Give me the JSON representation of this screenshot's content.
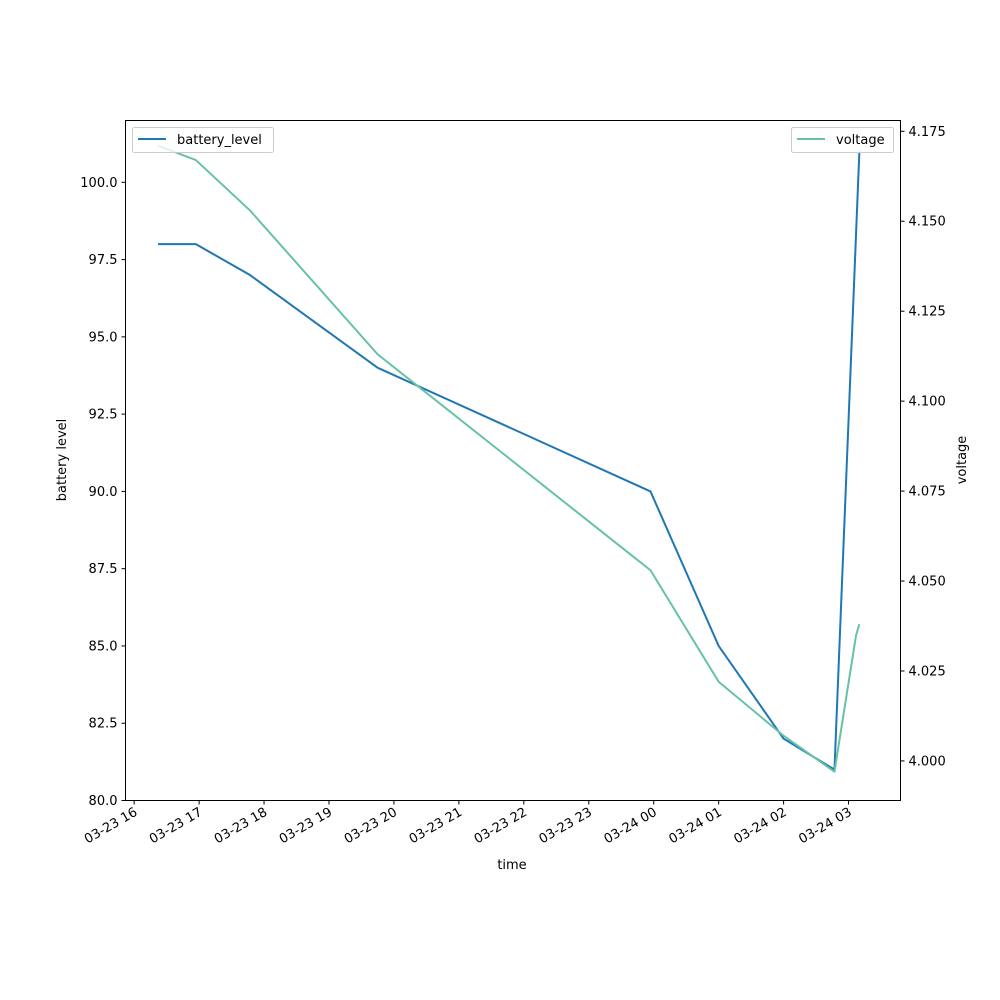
{
  "chart_data": {
    "type": "line",
    "xlabel": "time",
    "ylabel": "battery level",
    "y2label": "voltage",
    "xlim": [
      "03-23 15:52",
      "03-24 03:48"
    ],
    "ylim": [
      80.0,
      102.0
    ],
    "y2lim": [
      3.989,
      4.178
    ],
    "x_ticks": [
      "03-23 16",
      "03-23 17",
      "03-23 18",
      "03-23 19",
      "03-23 20",
      "03-23 21",
      "03-23 22",
      "03-23 23",
      "03-24 00",
      "03-24 01",
      "03-24 02",
      "03-24 03"
    ],
    "y_ticks": [
      "80.0",
      "82.5",
      "85.0",
      "87.5",
      "90.0",
      "92.5",
      "95.0",
      "97.5",
      "100.0"
    ],
    "y2_ticks": [
      "4.000",
      "4.025",
      "4.050",
      "4.075",
      "4.100",
      "4.125",
      "4.150",
      "4.175"
    ],
    "grid": false,
    "legend_placement": [
      "top-left",
      "top-right"
    ],
    "series": [
      {
        "name": "battery_level",
        "axis": "left",
        "color": "#1f77b4",
        "points": [
          {
            "x": "03-23 16:22",
            "y": 98
          },
          {
            "x": "03-23 16:57",
            "y": 98
          },
          {
            "x": "03-23 17:47",
            "y": 97
          },
          {
            "x": "03-23 19:45",
            "y": 94
          },
          {
            "x": "03-23 23:57",
            "y": 90
          },
          {
            "x": "03-24 01:00",
            "y": 85
          },
          {
            "x": "03-24 02:00",
            "y": 82
          },
          {
            "x": "03-24 02:47",
            "y": 81
          },
          {
            "x": "03-24 03:10",
            "y": 101
          }
        ]
      },
      {
        "name": "voltage",
        "axis": "right",
        "color": "#66c2a5",
        "points": [
          {
            "x": "03-23 16:22",
            "y": 4.171
          },
          {
            "x": "03-23 16:57",
            "y": 4.167
          },
          {
            "x": "03-23 17:47",
            "y": 4.153
          },
          {
            "x": "03-23 19:45",
            "y": 4.113
          },
          {
            "x": "03-23 23:57",
            "y": 4.053
          },
          {
            "x": "03-24 01:00",
            "y": 4.022
          },
          {
            "x": "03-24 02:00",
            "y": 4.007
          },
          {
            "x": "03-24 02:47",
            "y": 3.997
          },
          {
            "x": "03-24 03:07",
            "y": 4.035
          },
          {
            "x": "03-24 03:10",
            "y": 4.038
          }
        ]
      }
    ]
  }
}
